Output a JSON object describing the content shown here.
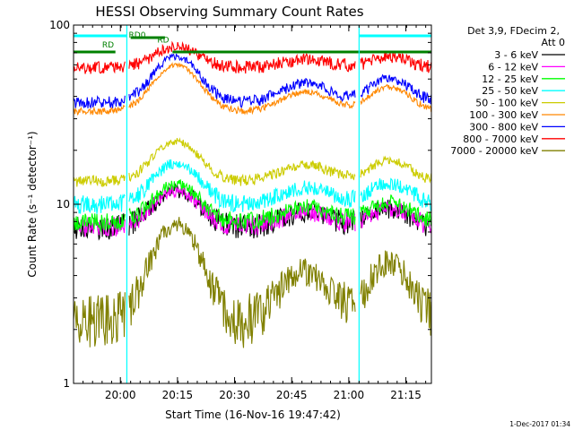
{
  "chart_data": {
    "type": "line",
    "title": "HESSI Observing Summary Count Rates",
    "xlabel": "Start Time (16-Nov-16 19:47:42)",
    "ylabel": "Count Rate (s⁻¹ detector⁻¹)",
    "yscale": "log",
    "ylim": [
      1,
      100
    ],
    "xlim_minutes": [
      0,
      94
    ],
    "x_ticks": [
      {
        "label": "20:00",
        "min": 12.3
      },
      {
        "label": "20:15",
        "min": 27.3
      },
      {
        "label": "20:30",
        "min": 42.3
      },
      {
        "label": "20:45",
        "min": 57.3
      },
      {
        "label": "21:00",
        "min": 72.3
      },
      {
        "label": "21:15",
        "min": 87.3
      }
    ],
    "y_ticks": [
      {
        "label": "1",
        "value": 1
      },
      {
        "label": "10",
        "value": 10
      },
      {
        "label": "100",
        "value": 100
      }
    ],
    "legend": {
      "header": [
        "Det 3,9, FDecim 2,",
        "Att 0"
      ],
      "placement": "right"
    },
    "series": [
      {
        "name": "3 - 6 keV",
        "color": "#000000",
        "baseline": 7.5,
        "peak": 4.5,
        "noise": 1.2,
        "seed": 1
      },
      {
        "name": "6 - 12 keV",
        "color": "#ff00ff",
        "baseline": 7.5,
        "peak": 4.5,
        "noise": 1.0,
        "seed": 2
      },
      {
        "name": "12 - 25 keV",
        "color": "#00ff00",
        "baseline": 8.0,
        "peak": 5.0,
        "noise": 1.0,
        "seed": 3
      },
      {
        "name": "25 - 50 keV",
        "color": "#00ffff",
        "baseline": 10.0,
        "peak": 7.0,
        "noise": 1.2,
        "seed": 4
      },
      {
        "name": "50 - 100 keV",
        "color": "#cccc00",
        "baseline": 13.5,
        "peak": 9.0,
        "noise": 1.0,
        "seed": 5
      },
      {
        "name": "100 - 300 keV",
        "color": "#ff8800",
        "baseline": 33.0,
        "peak": 27.0,
        "noise": 1.5,
        "seed": 6
      },
      {
        "name": "300 - 800 keV",
        "color": "#0000ff",
        "baseline": 37.0,
        "peak": 30.0,
        "noise": 3.0,
        "seed": 7
      },
      {
        "name": "800 - 7000 keV",
        "color": "#ff0000",
        "baseline": 58.0,
        "peak": 18.0,
        "noise": 5.0,
        "seed": 8
      },
      {
        "name": "7000 - 20000 keV",
        "color": "#808000",
        "baseline": 2.3,
        "peak": 5.5,
        "noise": 0.8,
        "seed": 9
      }
    ],
    "annotations": [
      {
        "label": "RD",
        "min": 7.5,
        "value": 75
      },
      {
        "label": "RD0",
        "min": 14.5,
        "value": 85
      },
      {
        "label": "RD",
        "min": 22.0,
        "value": 80
      }
    ],
    "timestamp": "1-Dec-2017 01:34"
  }
}
